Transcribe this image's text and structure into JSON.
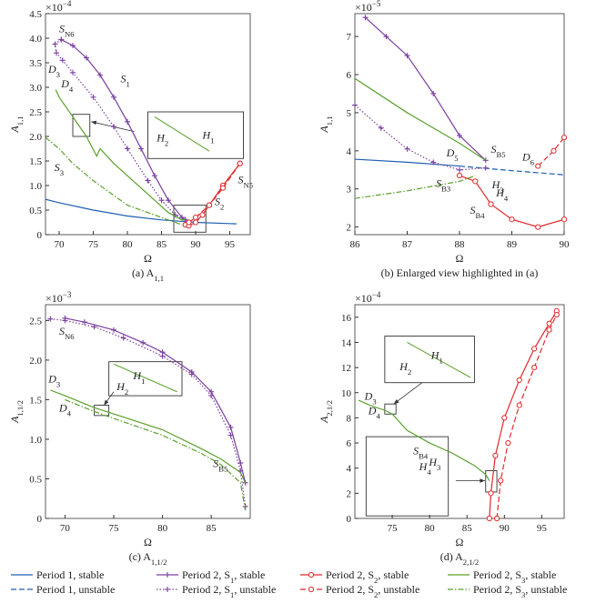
{
  "chart_data": [
    {
      "type": "line",
      "caption": [
        "(a) A",
        "1,1"
      ],
      "xlabel": [
        "Ω"
      ],
      "ylabel": [
        "A",
        "1,1"
      ],
      "y_multiplier": {
        "base": "×10",
        "exponent": "−4"
      },
      "xlim": [
        68,
        98
      ],
      "xticks": [
        70,
        75,
        80,
        85,
        90,
        95
      ],
      "ylim": [
        0,
        4.5
      ],
      "yticks": [
        0,
        0.5,
        {
          "value": 1,
          "label": "1.0"
        },
        1.5,
        {
          "value": 2,
          "label": "2.0"
        },
        2.5,
        {
          "value": 3,
          "label": "3.0"
        },
        3.5,
        {
          "value": 4,
          "label": "4.0"
        },
        4.5
      ],
      "series": [
        {
          "color": "#1f5fb0",
          "dash": "solid",
          "marker": null,
          "x": [
            68,
            70,
            75,
            80,
            85,
            88,
            90,
            96
          ],
          "values": [
            0.72,
            0.65,
            0.5,
            0.38,
            0.3,
            0.27,
            0.25,
            0.22
          ]
        },
        {
          "color": "#7a3fa0",
          "dash": "solid",
          "marker": "plus",
          "x": [
            70.3,
            72,
            74,
            76,
            78,
            80,
            82,
            84,
            86,
            88,
            88.5
          ],
          "values": [
            3.97,
            3.85,
            3.6,
            3.25,
            2.8,
            2.3,
            1.75,
            1.2,
            0.7,
            0.35,
            0.3
          ]
        },
        {
          "color": "#7a3fa0",
          "dash": "dotted",
          "marker": "plus",
          "x": [
            70.3,
            69.4,
            69.6,
            70.5,
            72,
            75,
            78,
            80,
            83,
            85,
            87,
            88.5
          ],
          "values": [
            3.97,
            3.88,
            3.7,
            3.55,
            3.3,
            2.8,
            2.2,
            1.75,
            1.1,
            0.7,
            0.4,
            0.3
          ]
        },
        {
          "color": "#e0282c",
          "dash": "solid",
          "marker": "circle",
          "x": [
            88.5,
            89,
            90,
            91,
            92,
            94,
            96.5
          ],
          "values": [
            0.2,
            0.18,
            0.25,
            0.4,
            0.6,
            1.0,
            1.45
          ]
        },
        {
          "color": "#e0282c",
          "dash": "dashed",
          "marker": "circle",
          "x": [
            89,
            90,
            92,
            94,
            96.5
          ],
          "values": [
            0.25,
            0.35,
            0.6,
            0.95,
            1.45
          ]
        },
        {
          "color": "#5aa02c",
          "dash": "solid",
          "marker": null,
          "x": [
            69.5,
            70,
            72,
            74,
            75.5,
            76,
            78,
            80,
            82,
            84,
            86,
            88,
            88.5
          ],
          "values": [
            2.95,
            2.8,
            2.4,
            2.0,
            1.6,
            1.75,
            1.45,
            1.2,
            0.95,
            0.7,
            0.45,
            0.3,
            0.32
          ]
        },
        {
          "color": "#5aa02c",
          "dash": "dashdot",
          "marker": null,
          "x": [
            68,
            70,
            72,
            75,
            78,
            80,
            83,
            86,
            88
          ],
          "values": [
            1.98,
            1.75,
            1.45,
            1.1,
            0.8,
            0.6,
            0.45,
            0.3,
            0.2
          ]
        }
      ],
      "annotations": [
        [
          "S",
          "N6"
        ],
        [
          "D",
          "3"
        ],
        [
          "D",
          "4"
        ],
        [
          "S",
          "1"
        ],
        [
          "S",
          "3"
        ],
        [
          "S",
          "2"
        ],
        [
          "S",
          "N5"
        ],
        [
          "H",
          "2"
        ],
        [
          "H",
          "1"
        ]
      ]
    },
    {
      "type": "line",
      "caption": [
        "(b) Enlarged view highlighted in (a)"
      ],
      "xlabel": [
        "Ω"
      ],
      "ylabel": [
        "A",
        "1,1"
      ],
      "y_multiplier": {
        "base": "×10",
        "exponent": "−5"
      },
      "xlim": [
        86,
        90
      ],
      "xticks": [
        86,
        87,
        88,
        89,
        90
      ],
      "ylim": [
        1.8,
        7.6
      ],
      "yticks": [
        2,
        3,
        4,
        5,
        6,
        7
      ],
      "series": [
        {
          "color": "#1f5fb0",
          "dash": "solid",
          "marker": null,
          "x": [
            86,
            87,
            88
          ],
          "values": [
            3.78,
            3.7,
            3.6
          ]
        },
        {
          "color": "#1f5fb0",
          "dash": "dashed",
          "marker": null,
          "x": [
            88,
            89,
            90
          ],
          "values": [
            3.6,
            3.48,
            3.37
          ]
        },
        {
          "color": "#7a3fa0",
          "dash": "solid",
          "marker": "plus",
          "x": [
            86.2,
            86.6,
            87,
            87.5,
            88,
            88.5
          ],
          "values": [
            7.5,
            7.0,
            6.5,
            5.5,
            4.4,
            3.75
          ]
        },
        {
          "color": "#7a3fa0",
          "dash": "dotted",
          "marker": "plus",
          "x": [
            86,
            86.5,
            87,
            87.5,
            88,
            88.5
          ],
          "values": [
            5.2,
            4.6,
            4.05,
            3.7,
            3.5,
            3.55
          ]
        },
        {
          "color": "#e0282c",
          "dash": "solid",
          "marker": "circle",
          "x": [
            88,
            88.3,
            88.6,
            89,
            89.5,
            90
          ],
          "values": [
            3.35,
            3.2,
            2.6,
            2.2,
            2.0,
            2.2
          ]
        },
        {
          "color": "#e0282c",
          "dash": "dashed",
          "marker": "circle",
          "x": [
            89.5,
            89.8,
            90
          ],
          "values": [
            3.6,
            4.0,
            4.35
          ]
        },
        {
          "color": "#5aa02c",
          "dash": "solid",
          "marker": null,
          "x": [
            86,
            87,
            88,
            88.5
          ],
          "values": [
            5.9,
            5.0,
            4.2,
            3.75
          ]
        },
        {
          "color": "#5aa02c",
          "dash": "dashdot",
          "marker": null,
          "x": [
            86,
            87,
            88,
            88.3
          ],
          "values": [
            2.75,
            2.95,
            3.2,
            3.35
          ]
        }
      ],
      "annotations": [
        [
          "D",
          "5"
        ],
        [
          "S",
          "B5"
        ],
        [
          "D",
          "6"
        ],
        [
          "H",
          "3"
        ],
        [
          "H",
          "4"
        ],
        [
          "S",
          "B3"
        ],
        [
          "S",
          "B4"
        ]
      ]
    },
    {
      "type": "line",
      "caption": [
        "(c) A",
        "1,1/2"
      ],
      "xlabel": [
        "Ω"
      ],
      "ylabel": [
        "A",
        "1,1/2"
      ],
      "y_multiplier": {
        "base": "×10",
        "exponent": "−3"
      },
      "xlim": [
        68,
        89
      ],
      "xticks": [
        70,
        75,
        80,
        85
      ],
      "ylim": [
        0,
        2.7
      ],
      "yticks": [
        0,
        0.5,
        {
          "value": 1,
          "label": "1.0"
        },
        1.5,
        {
          "value": 2,
          "label": "2.0"
        },
        2.5
      ],
      "series": [
        {
          "color": "#7a3fa0",
          "dash": "solid",
          "marker": "plus",
          "x": [
            70,
            72,
            75,
            78,
            80,
            83,
            85,
            87,
            88,
            88.5
          ],
          "values": [
            2.53,
            2.48,
            2.38,
            2.22,
            2.1,
            1.85,
            1.6,
            1.15,
            0.7,
            0.45
          ]
        },
        {
          "color": "#7a3fa0",
          "dash": "dotted",
          "marker": "plus",
          "x": [
            68.5,
            70,
            73,
            76,
            80,
            83,
            85,
            87,
            88,
            88.5
          ],
          "values": [
            2.52,
            2.5,
            2.42,
            2.28,
            2.05,
            1.82,
            1.55,
            1.05,
            0.6,
            0.15
          ]
        },
        {
          "color": "#5aa02c",
          "dash": "solid",
          "marker": null,
          "x": [
            68.5,
            70,
            73,
            76,
            80,
            84,
            86,
            88,
            88.5
          ],
          "values": [
            1.62,
            1.55,
            1.4,
            1.28,
            1.12,
            0.88,
            0.75,
            0.58,
            0.45
          ]
        },
        {
          "color": "#5aa02c",
          "dash": "dashdot",
          "marker": null,
          "x": [
            70,
            73,
            76,
            80,
            84,
            86,
            88,
            88.5
          ],
          "values": [
            1.5,
            1.35,
            1.22,
            1.05,
            0.82,
            0.68,
            0.45,
            0.1
          ]
        }
      ],
      "annotations": [
        [
          "S",
          "N6"
        ],
        [
          "D",
          "3"
        ],
        [
          "D",
          "4"
        ],
        [
          "H",
          "2"
        ],
        [
          "H",
          "1"
        ],
        [
          "S",
          "B5"
        ]
      ]
    },
    {
      "type": "line",
      "caption": [
        "(d) A",
        "2,1/2"
      ],
      "xlabel": [
        "Ω"
      ],
      "ylabel": [
        "A",
        "2,1/2"
      ],
      "y_multiplier": {
        "base": "×10",
        "exponent": "−4"
      },
      "xlim": [
        70,
        98
      ],
      "xticks": [
        75,
        80,
        85,
        90,
        95
      ],
      "ylim": [
        0,
        17
      ],
      "yticks": [
        0,
        2,
        4,
        6,
        8,
        10,
        12,
        14,
        16
      ],
      "series": [
        {
          "color": "#5aa02c",
          "dash": "solid",
          "marker": null,
          "x": [
            70.5,
            72,
            74,
            75,
            77,
            80,
            83,
            86,
            87.5,
            88
          ],
          "values": [
            9.4,
            9.0,
            8.6,
            8.3,
            7.0,
            6.0,
            5.2,
            4.2,
            3.5,
            3.0
          ]
        },
        {
          "color": "#e0282c",
          "dash": "solid",
          "marker": "circle",
          "x": [
            88,
            88.2,
            88.8,
            90,
            92,
            94,
            96,
            97
          ],
          "values": [
            0,
            2,
            5,
            8,
            11,
            13.5,
            15.5,
            16.5
          ]
        },
        {
          "color": "#e0282c",
          "dash": "dashed",
          "marker": "circle",
          "x": [
            89,
            89.5,
            90.5,
            92,
            94,
            96,
            97
          ],
          "values": [
            0,
            3,
            6,
            9,
            12,
            15,
            16.2
          ]
        }
      ],
      "annotations": [
        [
          "D",
          "3"
        ],
        [
          "D",
          "4"
        ],
        [
          "H",
          "2"
        ],
        [
          "H",
          "1"
        ],
        [
          "S",
          "B4"
        ],
        [
          "H",
          "4"
        ],
        [
          "H",
          "3"
        ]
      ]
    }
  ],
  "legend": [
    {
      "name": [
        "Period 1, stable"
      ],
      "color": "#1f5fb0",
      "dash": "solid",
      "marker": null
    },
    {
      "name": [
        "Period 1, unstable"
      ],
      "color": "#1f5fb0",
      "dash": "dashed",
      "marker": null
    },
    {
      "name": [
        "Period 2, S",
        "1",
        ", stable"
      ],
      "color": "#7a3fa0",
      "dash": "solid",
      "marker": "plus"
    },
    {
      "name": [
        "Period 2, S",
        "1",
        ", unstable"
      ],
      "color": "#7a3fa0",
      "dash": "dotted",
      "marker": "plus"
    },
    {
      "name": [
        "Period 2, S",
        "2",
        ", stable"
      ],
      "color": "#e0282c",
      "dash": "solid",
      "marker": "circle"
    },
    {
      "name": [
        "Period 2, S",
        "2",
        ", unstable"
      ],
      "color": "#e0282c",
      "dash": "dashed",
      "marker": "circle"
    },
    {
      "name": [
        "Period 2, S",
        "3",
        ", stable"
      ],
      "color": "#5aa02c",
      "dash": "solid",
      "marker": null
    },
    {
      "name": [
        "Period 2, S",
        "3",
        ", unstable"
      ],
      "color": "#5aa02c",
      "dash": "dashdot",
      "marker": null
    }
  ]
}
